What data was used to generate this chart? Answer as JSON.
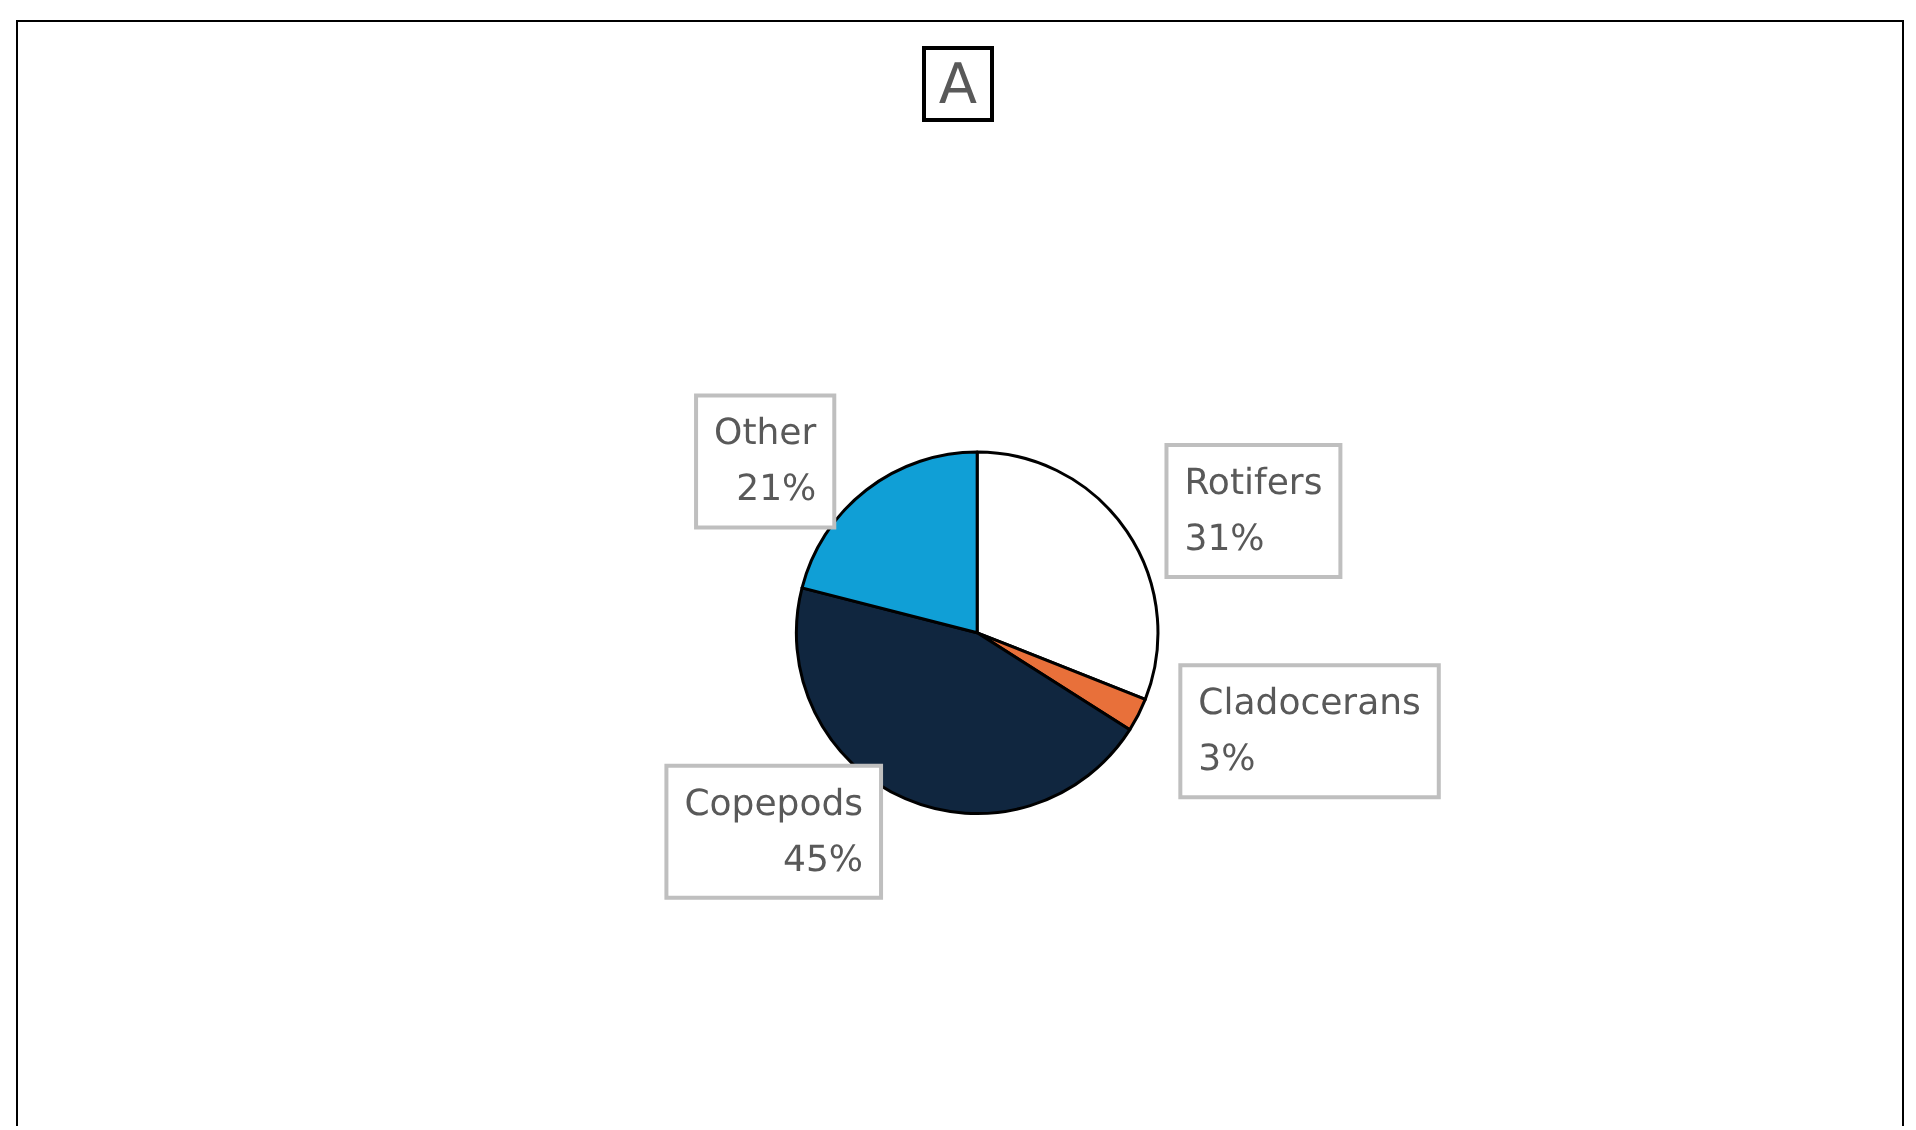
{
  "chart_data": {
    "type": "pie",
    "title": "A",
    "categories": [
      "Rotifers",
      "Cladocerans",
      "Copepods",
      "Other"
    ],
    "values": [
      31,
      3,
      45,
      21
    ],
    "value_labels": [
      "31%",
      "3%",
      "45%",
      "21%"
    ],
    "colors": [
      "#ffffff",
      "#e8703a",
      "#10263f",
      "#109fd6"
    ],
    "legend": false
  }
}
